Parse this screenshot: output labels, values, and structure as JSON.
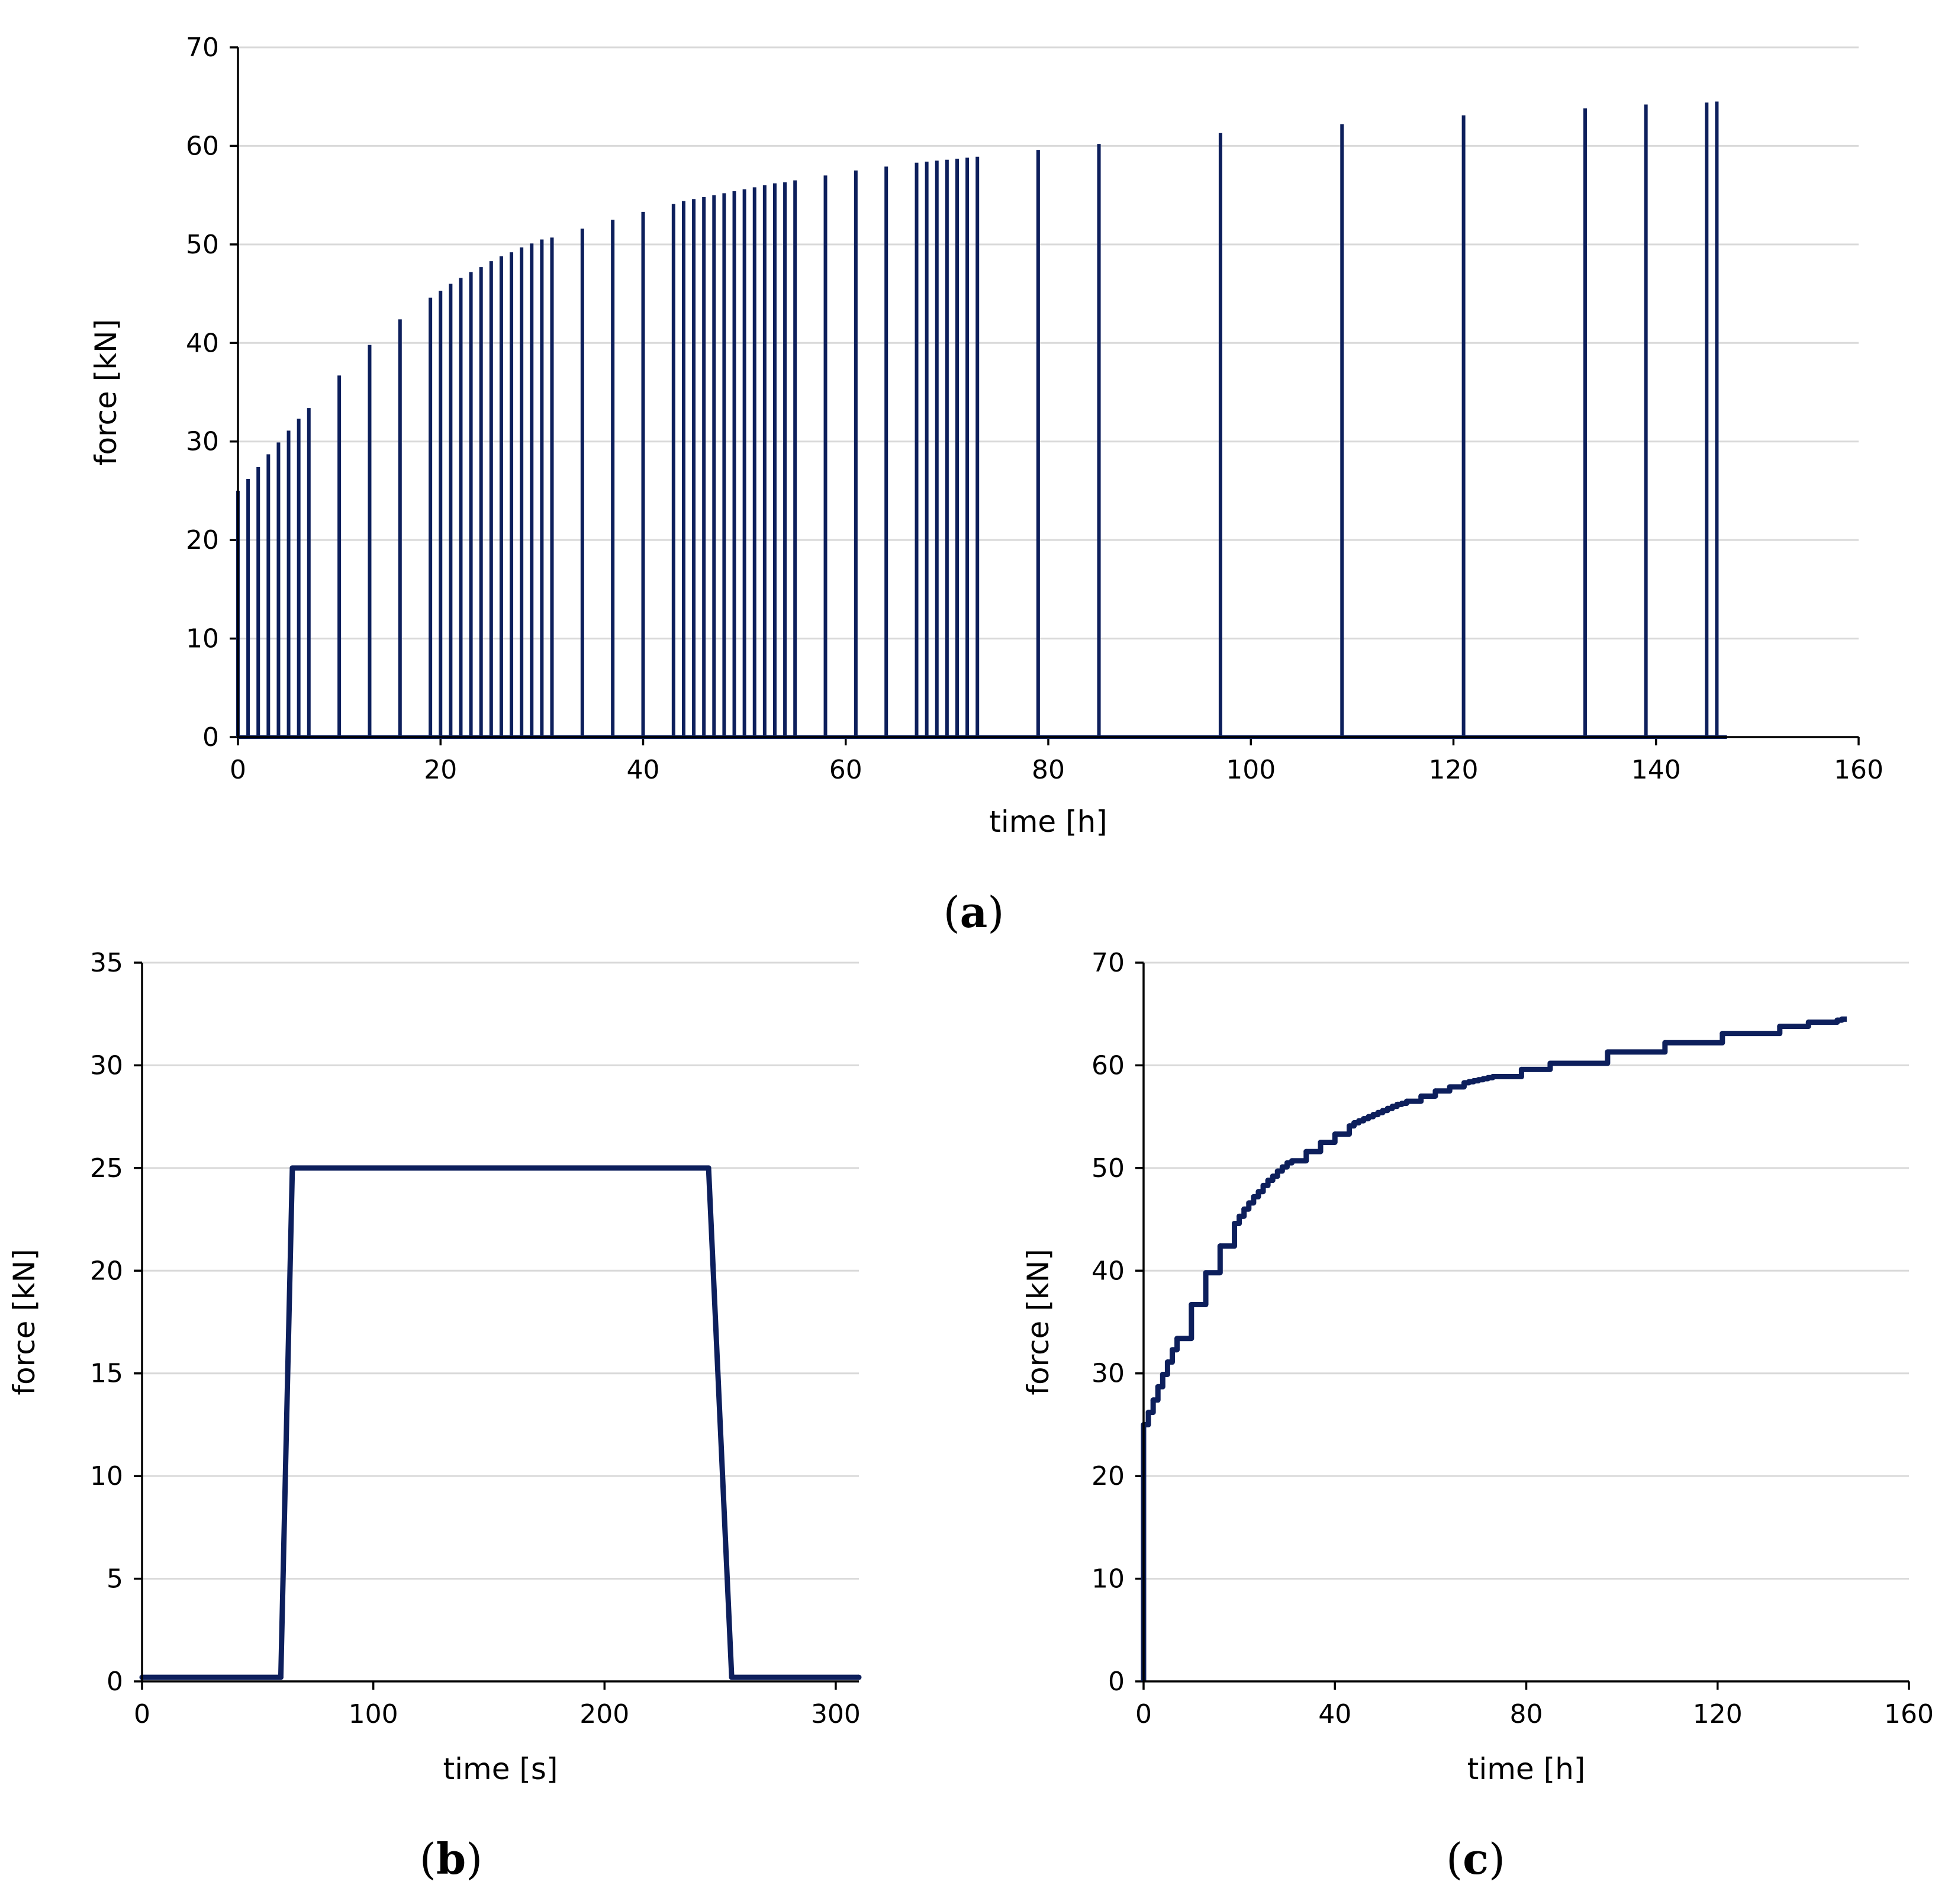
{
  "colors": {
    "series": "#0d1f5c",
    "grid": "#d9d9d9",
    "axis": "#000000"
  },
  "chart_data": [
    {
      "id": "a",
      "type": "line",
      "panel_label": "a",
      "title": "",
      "xlabel": "time [h]",
      "ylabel": "force [kN]",
      "xlim": [
        0,
        160
      ],
      "ylim": [
        0,
        70
      ],
      "xticks": [
        0,
        20,
        40,
        60,
        80,
        100,
        120,
        140,
        160
      ],
      "yticks": [
        0,
        10,
        20,
        30,
        40,
        50,
        60,
        70
      ],
      "grid": "horizontal",
      "series": [
        {
          "name": "force",
          "style": "impulses",
          "x": [
            0,
            1,
            2,
            3,
            4,
            5,
            6,
            7,
            10,
            13,
            16,
            19,
            20,
            21,
            22,
            23,
            24,
            25,
            26,
            27,
            28,
            29,
            30,
            31,
            34,
            37,
            40,
            43,
            44,
            45,
            46,
            47,
            48,
            49,
            50,
            51,
            52,
            53,
            54,
            55,
            58,
            61,
            64,
            67,
            68,
            69,
            70,
            71,
            72,
            73,
            79,
            85,
            97,
            109,
            121,
            133,
            139,
            145,
            146
          ],
          "y": [
            25,
            26.2,
            27.4,
            28.7,
            29.9,
            31.1,
            32.3,
            33.4,
            36.7,
            39.8,
            42.4,
            44.6,
            45.3,
            46,
            46.6,
            47.2,
            47.7,
            48.3,
            48.8,
            49.2,
            49.7,
            50.1,
            50.5,
            50.7,
            51.6,
            52.5,
            53.3,
            54.1,
            54.4,
            54.6,
            54.8,
            55,
            55.2,
            55.4,
            55.6,
            55.8,
            56,
            56.2,
            56.3,
            56.5,
            57,
            57.5,
            57.9,
            58.3,
            58.4,
            58.5,
            58.6,
            58.7,
            58.8,
            58.9,
            59.6,
            60.2,
            61.3,
            62.2,
            63.1,
            63.8,
            64.2,
            64.4,
            64.5
          ],
          "end_x": 147
        }
      ]
    },
    {
      "id": "b",
      "type": "line",
      "panel_label": "b",
      "title": "",
      "xlabel": "time [s]",
      "ylabel": "force [kN]",
      "xlim": [
        0,
        310
      ],
      "ylim": [
        0,
        35
      ],
      "xticks": [
        0,
        100,
        200,
        300
      ],
      "yticks": [
        0,
        5,
        10,
        15,
        20,
        25,
        30,
        35
      ],
      "grid": "horizontal",
      "series": [
        {
          "name": "force",
          "style": "line",
          "x": [
            0,
            60,
            65,
            245,
            255,
            310
          ],
          "y": [
            0.2,
            0.2,
            25,
            25,
            0.2,
            0.2
          ]
        }
      ]
    },
    {
      "id": "c",
      "type": "line",
      "panel_label": "c",
      "title": "",
      "xlabel": "time [h]",
      "ylabel": "force [kN]",
      "xlim": [
        0,
        160
      ],
      "ylim": [
        0,
        70
      ],
      "xticks": [
        0,
        40,
        80,
        120,
        160
      ],
      "yticks": [
        0,
        10,
        20,
        30,
        40,
        50,
        60,
        70
      ],
      "grid": "horizontal",
      "series": [
        {
          "name": "force",
          "style": "step",
          "x": [
            0,
            1,
            2,
            3,
            4,
            5,
            6,
            7,
            10,
            13,
            16,
            19,
            20,
            21,
            22,
            23,
            24,
            25,
            26,
            27,
            28,
            29,
            30,
            31,
            34,
            37,
            40,
            43,
            44,
            45,
            46,
            47,
            48,
            49,
            50,
            51,
            52,
            53,
            54,
            55,
            58,
            61,
            64,
            67,
            68,
            69,
            70,
            71,
            72,
            73,
            79,
            85,
            97,
            109,
            121,
            133,
            139,
            145,
            146
          ],
          "y": [
            25,
            26.2,
            27.4,
            28.7,
            29.9,
            31.1,
            32.3,
            33.4,
            36.7,
            39.8,
            42.4,
            44.6,
            45.3,
            46,
            46.6,
            47.2,
            47.7,
            48.3,
            48.8,
            49.2,
            49.7,
            50.1,
            50.5,
            50.7,
            51.6,
            52.5,
            53.3,
            54.1,
            54.4,
            54.6,
            54.8,
            55,
            55.2,
            55.4,
            55.6,
            55.8,
            56,
            56.2,
            56.3,
            56.5,
            57,
            57.5,
            57.9,
            58.3,
            58.4,
            58.5,
            58.6,
            58.7,
            58.8,
            58.9,
            59.6,
            60.2,
            61.3,
            62.2,
            63.1,
            63.8,
            64.2,
            64.4,
            64.5
          ],
          "start_from_zero": true,
          "end_x": 147
        }
      ]
    }
  ]
}
